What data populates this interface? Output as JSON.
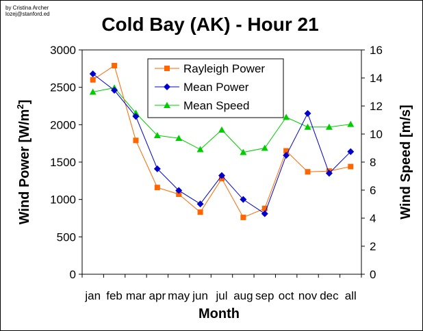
{
  "credit": {
    "line1": "by Cristina Archer",
    "line2": "lozej@stanford.ed"
  },
  "chart_data": {
    "type": "line",
    "title": "Cold Bay (AK) - Hour 21",
    "xlabel": "Month",
    "ylabel_left": "Wind Power [W/m",
    "ylabel_left_superscript": "2",
    "ylabel_left_close": "]",
    "ylabel_right": "Wind Speed [m/s]",
    "categories": [
      "jan",
      "feb",
      "mar",
      "apr",
      "may",
      "jun",
      "jul",
      "aug",
      "sep",
      "oct",
      "nov",
      "dec",
      "all"
    ],
    "ylim_left": [
      0,
      3000
    ],
    "yticks_left": [
      0,
      500,
      1000,
      1500,
      2000,
      2500,
      3000
    ],
    "ylim_right": [
      0,
      16
    ],
    "yticks_right": [
      0,
      2,
      4,
      6,
      8,
      10,
      12,
      14,
      16
    ],
    "grid": false,
    "legend_position": "top-center",
    "series": [
      {
        "name": "Rayleigh Power",
        "axis": "left",
        "marker": "square",
        "color": "#FF6600",
        "values": [
          2600,
          2790,
          1790,
          1160,
          1070,
          830,
          1280,
          760,
          880,
          1650,
          1370,
          1380,
          1440
        ]
      },
      {
        "name": "Mean Power",
        "axis": "left",
        "marker": "diamond",
        "color": "#0000CC",
        "values": [
          2680,
          2460,
          2110,
          1410,
          1120,
          940,
          1320,
          1000,
          810,
          1590,
          2150,
          1350,
          1640
        ]
      },
      {
        "name": "Mean Speed",
        "axis": "right",
        "marker": "triangle",
        "color": "#00CC00",
        "values": [
          13.0,
          13.3,
          11.5,
          9.9,
          9.7,
          8.9,
          10.3,
          8.7,
          9.0,
          11.2,
          10.5,
          10.5,
          10.7
        ]
      }
    ]
  }
}
